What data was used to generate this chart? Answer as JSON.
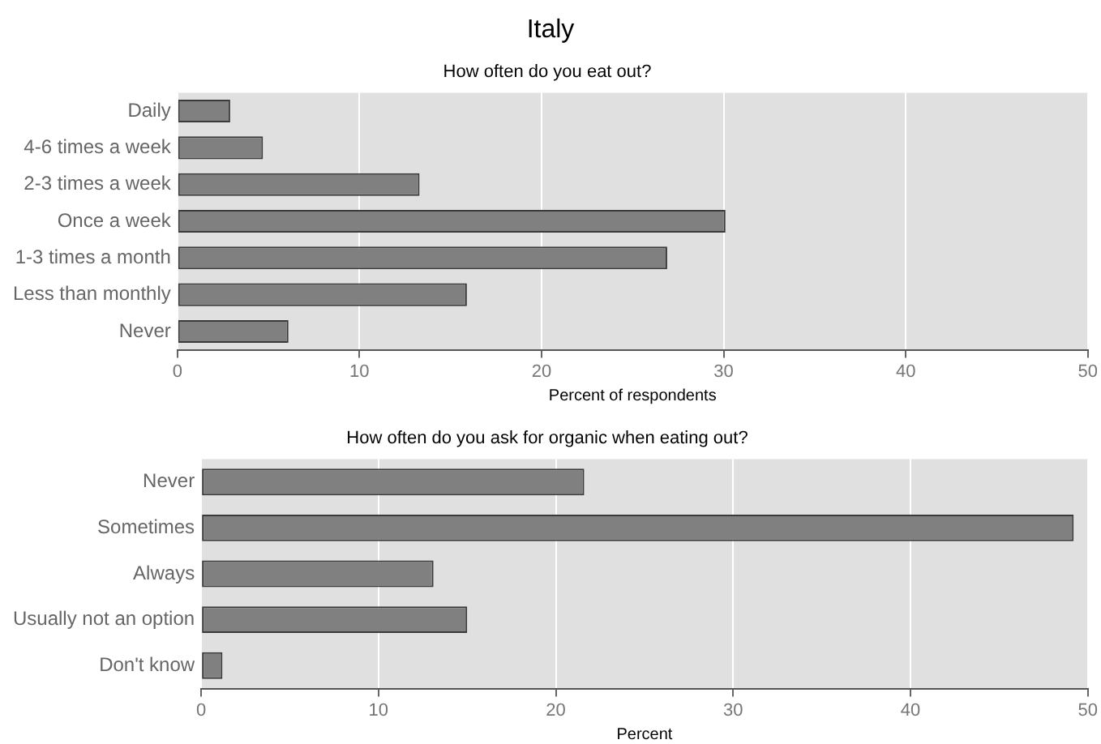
{
  "chart_data": [
    {
      "type": "bar",
      "orientation": "horizontal",
      "title": "Italy",
      "subtitle": "How often do you eat out?",
      "xlabel": "Percent of respondents",
      "categories": [
        "Daily",
        "4-6 times a week",
        "2-3 times a week",
        "Once a week",
        "1-3 times a month",
        "Less than monthly",
        "Never"
      ],
      "values": [
        2.9,
        4.7,
        13.3,
        30.1,
        26.9,
        15.9,
        6.1
      ],
      "color": "#808080",
      "xlim": [
        0,
        50
      ],
      "xticks": [
        0,
        10,
        20,
        30,
        40,
        50
      ],
      "grid": "x",
      "legend": false
    },
    {
      "type": "bar",
      "orientation": "horizontal",
      "title": "How often do you ask for organic when eating out?",
      "xlabel": "Percent",
      "categories": [
        "Never",
        "Sometimes",
        "Always",
        "Usually not an option",
        "Don't know"
      ],
      "values": [
        21.6,
        49.2,
        13.1,
        15.0,
        1.2
      ],
      "color": "#808080",
      "xlim": [
        0,
        50
      ],
      "xticks": [
        0,
        10,
        20,
        30,
        40,
        50
      ],
      "grid": "x",
      "legend": false
    }
  ]
}
